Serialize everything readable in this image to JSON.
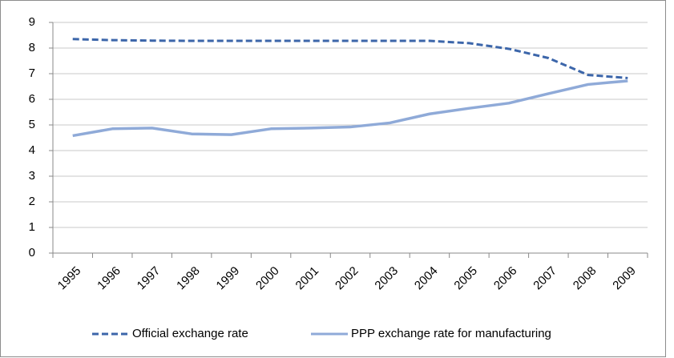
{
  "chart_data": {
    "type": "line",
    "categories": [
      "1995",
      "1996",
      "1997",
      "1998",
      "1999",
      "2000",
      "2001",
      "2002",
      "2003",
      "2004",
      "2005",
      "2006",
      "2007",
      "2008",
      "2009"
    ],
    "series": [
      {
        "name": "Official exchange rate",
        "color": "#3c66aa",
        "dashed": true,
        "values": [
          8.35,
          8.31,
          8.29,
          8.28,
          8.28,
          8.28,
          8.28,
          8.28,
          8.28,
          8.28,
          8.19,
          7.97,
          7.61,
          6.95,
          6.83
        ]
      },
      {
        "name": "PPP exchange rate for manufacturing",
        "color": "#8faad8",
        "dashed": false,
        "values": [
          4.58,
          4.85,
          4.88,
          4.65,
          4.62,
          4.85,
          4.88,
          4.92,
          5.08,
          5.43,
          5.65,
          5.85,
          6.22,
          6.58,
          6.72
        ]
      }
    ],
    "ylim": [
      0,
      9
    ],
    "yticks": [
      0,
      1,
      2,
      3,
      4,
      5,
      6,
      7,
      8,
      9
    ],
    "grid": true,
    "legend": "bottom"
  }
}
